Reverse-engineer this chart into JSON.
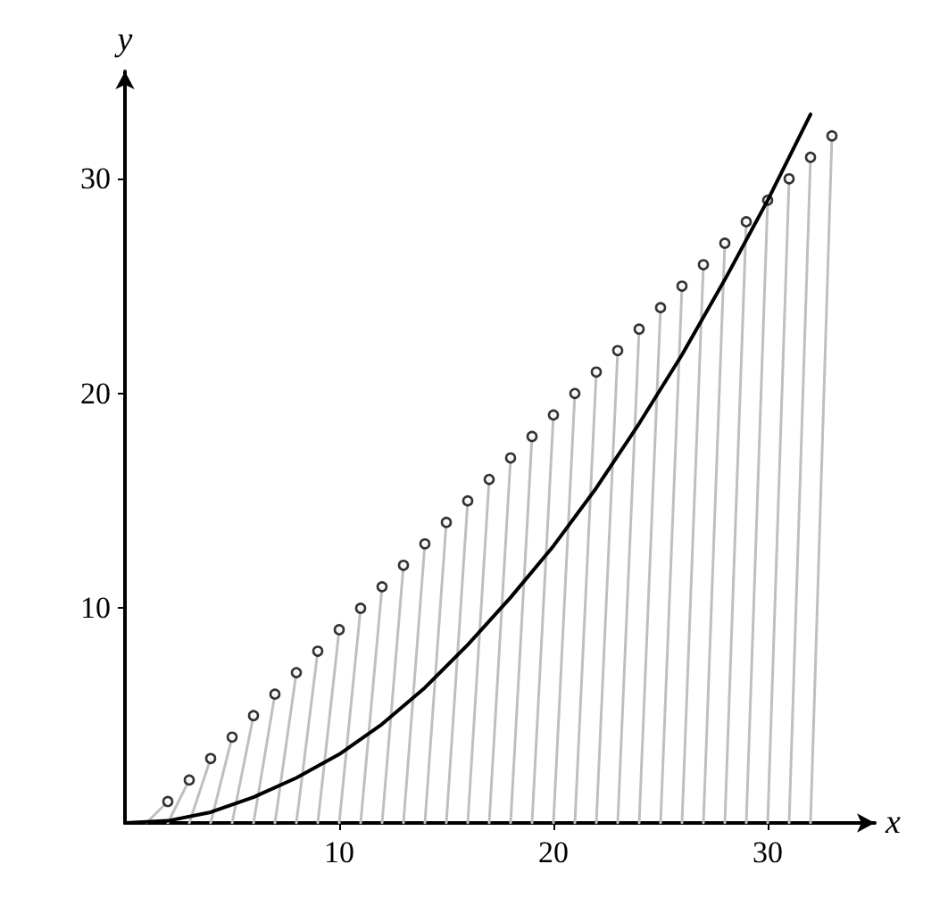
{
  "chart_data": {
    "type": "line",
    "xlabel": "x",
    "ylabel": "y",
    "xlim": [
      0,
      35
    ],
    "ylim": [
      0,
      35
    ],
    "xticks": [
      10,
      20,
      30
    ],
    "yticks": [
      10,
      20,
      30
    ],
    "grid": false,
    "series": [
      {
        "type": "line",
        "color": "#bfbfbf",
        "marker": "none",
        "line_style": "solid",
        "x": [
          1,
          2
        ],
        "values": [
          0,
          1
        ]
      },
      {
        "type": "line",
        "color": "#bfbfbf",
        "marker": "none",
        "line_style": "solid",
        "x": [
          2,
          3
        ],
        "values": [
          0,
          2
        ]
      },
      {
        "type": "line",
        "color": "#bfbfbf",
        "marker": "none",
        "line_style": "solid",
        "x": [
          3,
          4
        ],
        "values": [
          0,
          3
        ]
      },
      {
        "type": "line",
        "color": "#bfbfbf",
        "marker": "none",
        "line_style": "solid",
        "x": [
          4,
          5
        ],
        "values": [
          0,
          4
        ]
      },
      {
        "type": "line",
        "color": "#bfbfbf",
        "marker": "none",
        "line_style": "solid",
        "x": [
          5,
          6
        ],
        "values": [
          0,
          5
        ]
      },
      {
        "type": "line",
        "color": "#bfbfbf",
        "marker": "none",
        "line_style": "solid",
        "x": [
          6,
          7
        ],
        "values": [
          0,
          6
        ]
      },
      {
        "type": "line",
        "color": "#bfbfbf",
        "marker": "none",
        "line_style": "solid",
        "x": [
          7,
          8
        ],
        "values": [
          0,
          7
        ]
      },
      {
        "type": "line",
        "color": "#bfbfbf",
        "marker": "none",
        "line_style": "solid",
        "x": [
          8,
          9
        ],
        "values": [
          0,
          8
        ]
      },
      {
        "type": "line",
        "color": "#bfbfbf",
        "marker": "none",
        "line_style": "solid",
        "x": [
          9,
          10
        ],
        "values": [
          0,
          9
        ]
      },
      {
        "type": "line",
        "color": "#bfbfbf",
        "marker": "none",
        "line_style": "solid",
        "x": [
          10,
          11
        ],
        "values": [
          0,
          10
        ]
      },
      {
        "type": "line",
        "color": "#bfbfbf",
        "marker": "none",
        "line_style": "solid",
        "x": [
          11,
          12
        ],
        "values": [
          0,
          11
        ]
      },
      {
        "type": "line",
        "color": "#bfbfbf",
        "marker": "none",
        "line_style": "solid",
        "x": [
          12,
          13
        ],
        "values": [
          0,
          12
        ]
      },
      {
        "type": "line",
        "color": "#bfbfbf",
        "marker": "none",
        "line_style": "solid",
        "x": [
          13,
          14
        ],
        "values": [
          0,
          13
        ]
      },
      {
        "type": "line",
        "color": "#bfbfbf",
        "marker": "none",
        "line_style": "solid",
        "x": [
          14,
          15
        ],
        "values": [
          0,
          14
        ]
      },
      {
        "type": "line",
        "color": "#bfbfbf",
        "marker": "none",
        "line_style": "solid",
        "x": [
          15,
          16
        ],
        "values": [
          0,
          15
        ]
      },
      {
        "type": "line",
        "color": "#bfbfbf",
        "marker": "none",
        "line_style": "solid",
        "x": [
          16,
          17
        ],
        "values": [
          0,
          16
        ]
      },
      {
        "type": "line",
        "color": "#bfbfbf",
        "marker": "none",
        "line_style": "solid",
        "x": [
          17,
          18
        ],
        "values": [
          0,
          17
        ]
      },
      {
        "type": "line",
        "color": "#bfbfbf",
        "marker": "none",
        "line_style": "solid",
        "x": [
          18,
          19
        ],
        "values": [
          0,
          18
        ]
      },
      {
        "type": "line",
        "color": "#bfbfbf",
        "marker": "none",
        "line_style": "solid",
        "x": [
          19,
          20
        ],
        "values": [
          0,
          19
        ]
      },
      {
        "type": "line",
        "color": "#bfbfbf",
        "marker": "none",
        "line_style": "solid",
        "x": [
          20,
          21
        ],
        "values": [
          0,
          20
        ]
      },
      {
        "type": "line",
        "color": "#bfbfbf",
        "marker": "none",
        "line_style": "solid",
        "x": [
          21,
          22
        ],
        "values": [
          0,
          21
        ]
      },
      {
        "type": "line",
        "color": "#bfbfbf",
        "marker": "none",
        "line_style": "solid",
        "x": [
          22,
          23
        ],
        "values": [
          0,
          22
        ]
      },
      {
        "type": "line",
        "color": "#bfbfbf",
        "marker": "none",
        "line_style": "solid",
        "x": [
          23,
          24
        ],
        "values": [
          0,
          23
        ]
      },
      {
        "type": "line",
        "color": "#bfbfbf",
        "marker": "none",
        "line_style": "solid",
        "x": [
          24,
          25
        ],
        "values": [
          0,
          24
        ]
      },
      {
        "type": "line",
        "color": "#bfbfbf",
        "marker": "none",
        "line_style": "solid",
        "x": [
          25,
          26
        ],
        "values": [
          0,
          25
        ]
      },
      {
        "type": "line",
        "color": "#bfbfbf",
        "marker": "none",
        "line_style": "solid",
        "x": [
          26,
          27
        ],
        "values": [
          0,
          26
        ]
      },
      {
        "type": "line",
        "color": "#bfbfbf",
        "marker": "none",
        "line_style": "solid",
        "x": [
          27,
          28
        ],
        "values": [
          0,
          27
        ]
      },
      {
        "type": "line",
        "color": "#bfbfbf",
        "marker": "none",
        "line_style": "solid",
        "x": [
          28,
          29
        ],
        "values": [
          0,
          28
        ]
      },
      {
        "type": "line",
        "color": "#bfbfbf",
        "marker": "none",
        "line_style": "solid",
        "x": [
          29,
          30
        ],
        "values": [
          0,
          29
        ]
      },
      {
        "type": "line",
        "color": "#bfbfbf",
        "marker": "none",
        "line_style": "solid",
        "x": [
          30,
          31
        ],
        "values": [
          0,
          30
        ]
      },
      {
        "type": "line",
        "color": "#bfbfbf",
        "marker": "none",
        "line_style": "solid",
        "x": [
          31,
          32
        ],
        "values": [
          0,
          31
        ]
      },
      {
        "type": "line",
        "color": "#bfbfbf",
        "marker": "none",
        "line_style": "solid",
        "x": [
          32,
          33
        ],
        "values": [
          0,
          32
        ]
      },
      {
        "type": "scatter",
        "color": "#000000",
        "marker": "circle",
        "x": [
          2,
          3,
          4,
          5,
          6,
          7,
          8,
          9,
          10,
          11,
          12,
          13,
          14,
          15,
          16,
          17,
          18,
          19,
          20,
          21,
          22,
          23,
          24,
          25,
          26,
          27,
          28,
          29,
          30,
          31,
          32,
          33
        ],
        "values": [
          1,
          2,
          3,
          4,
          5,
          6,
          7,
          8,
          9,
          10,
          11,
          12,
          13,
          14,
          15,
          16,
          17,
          18,
          19,
          20,
          21,
          22,
          23,
          24,
          25,
          26,
          27,
          28,
          29,
          30,
          31,
          32
        ]
      },
      {
        "color": "#000000",
        "marker": "none",
        "line_style": "solid",
        "x": [
          0,
          2,
          4,
          6,
          8,
          10,
          12,
          14,
          16,
          18,
          20,
          22,
          24,
          26,
          28,
          30,
          32
        ],
        "values": [
          0,
          0.1,
          0.5,
          1.2,
          2.1,
          3.2,
          4.6,
          6.3,
          8.3,
          10.5,
          12.9,
          15.6,
          18.6,
          21.8,
          25.3,
          29.0,
          33.0
        ]
      }
    ]
  }
}
